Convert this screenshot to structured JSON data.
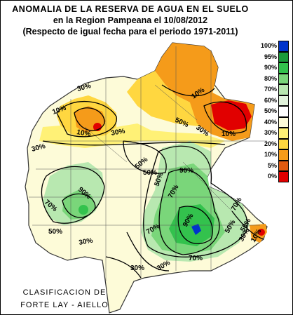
{
  "title": {
    "line1": "ANOMALIA DE LA RESERVA DE AGUA EN EL SUELO",
    "line2": "en la Region Pampeana el   10/08/2012",
    "line3": "(Respecto de igual fecha para el periodo 1971-2011)"
  },
  "legend": [
    {
      "label": "100%",
      "color": "#0033cc"
    },
    {
      "label": "95%",
      "color": "#1a9a3a"
    },
    {
      "label": "90%",
      "color": "#33c24d"
    },
    {
      "label": "80%",
      "color": "#7ad67a"
    },
    {
      "label": "70%",
      "color": "#b8e8b0"
    },
    {
      "label": "60%",
      "color": "#e2f4dc"
    },
    {
      "label": "50%",
      "color": "#ffffff"
    },
    {
      "label": "40%",
      "color": "#fdfbd8"
    },
    {
      "label": "30%",
      "color": "#fff176"
    },
    {
      "label": "20%",
      "color": "#ffd740"
    },
    {
      "label": "10%",
      "color": "#f59b1a"
    },
    {
      "label": "5%",
      "color": "#e05a10"
    },
    {
      "label": "0%",
      "color": "#e10000"
    }
  ],
  "contour_labels": [
    "30%",
    "10%",
    "10%",
    "10%",
    "10%",
    "30%",
    "30%",
    "50%",
    "50%",
    "50%",
    "30%",
    "70%",
    "90%",
    "90%",
    "50%",
    "70%",
    "70%",
    "90%",
    "70%",
    "50%",
    "70%",
    "50%",
    "30%",
    "30%",
    "50%",
    "30%",
    "30%",
    "10%"
  ],
  "credits": {
    "line1": "CLASIFICACION DE",
    "line2": "FORTE LAY - AIELLO"
  }
}
